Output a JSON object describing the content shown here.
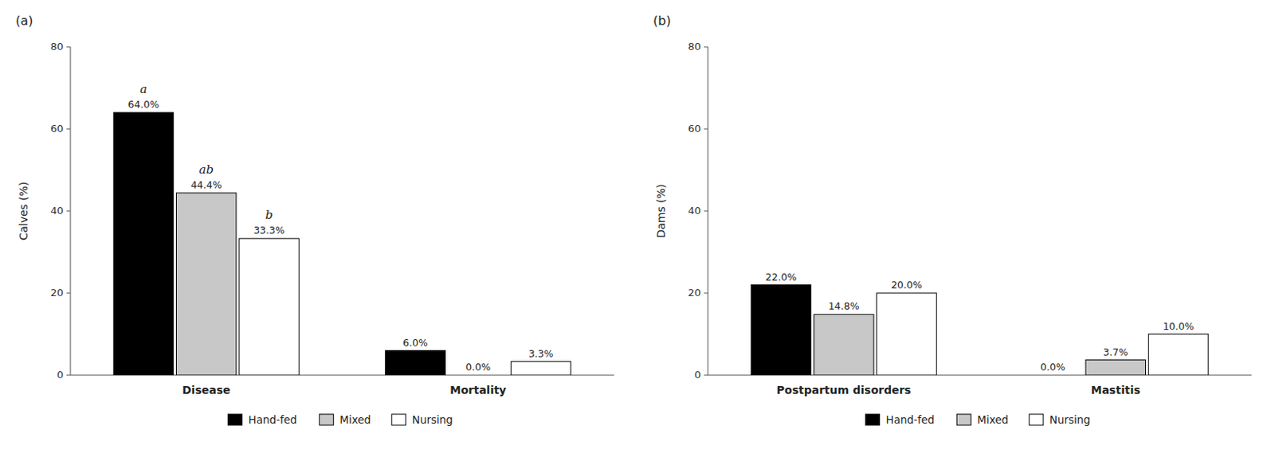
{
  "chart_data": [
    {
      "type": "bar",
      "title": "(a)",
      "ylabel": "Calves (%)",
      "categories": [
        "Disease",
        "Mortality"
      ],
      "series": [
        {
          "name": "Hand-fed",
          "color": "#000000",
          "values": [
            64.0,
            6.0
          ],
          "value_labels": [
            "64.0%",
            "6.0%"
          ],
          "annotations": [
            "a",
            null
          ]
        },
        {
          "name": "Mixed",
          "color": "#c8c8c8",
          "values": [
            44.4,
            0.0
          ],
          "value_labels": [
            "44.4%",
            "0.0%"
          ],
          "annotations": [
            "ab",
            null
          ]
        },
        {
          "name": "Nursing",
          "color": "#ffffff",
          "values": [
            33.3,
            3.3
          ],
          "value_labels": [
            "33.3%",
            "3.3%"
          ],
          "annotations": [
            "b",
            null
          ]
        }
      ],
      "ylim": [
        0,
        80
      ],
      "yticks": [
        0,
        20,
        40,
        60,
        80
      ],
      "grid": false,
      "legend": "bottom",
      "data_labels": true
    },
    {
      "type": "bar",
      "title": "(b)",
      "ylabel": "Dams (%)",
      "categories": [
        "Postpartum disorders",
        "Mastitis"
      ],
      "series": [
        {
          "name": "Hand-fed",
          "color": "#000000",
          "values": [
            22.0,
            0.0
          ],
          "value_labels": [
            "22.0%",
            "0.0%"
          ]
        },
        {
          "name": "Mixed",
          "color": "#c8c8c8",
          "values": [
            14.8,
            3.7
          ],
          "value_labels": [
            "14.8%",
            "3.7%"
          ]
        },
        {
          "name": "Nursing",
          "color": "#ffffff",
          "values": [
            20.0,
            10.0
          ],
          "value_labels": [
            "20.0%",
            "10.0%"
          ]
        }
      ],
      "ylim": [
        0,
        80
      ],
      "yticks": [
        0,
        20,
        40,
        60,
        80
      ],
      "grid": false,
      "legend": "bottom",
      "data_labels": true
    }
  ]
}
